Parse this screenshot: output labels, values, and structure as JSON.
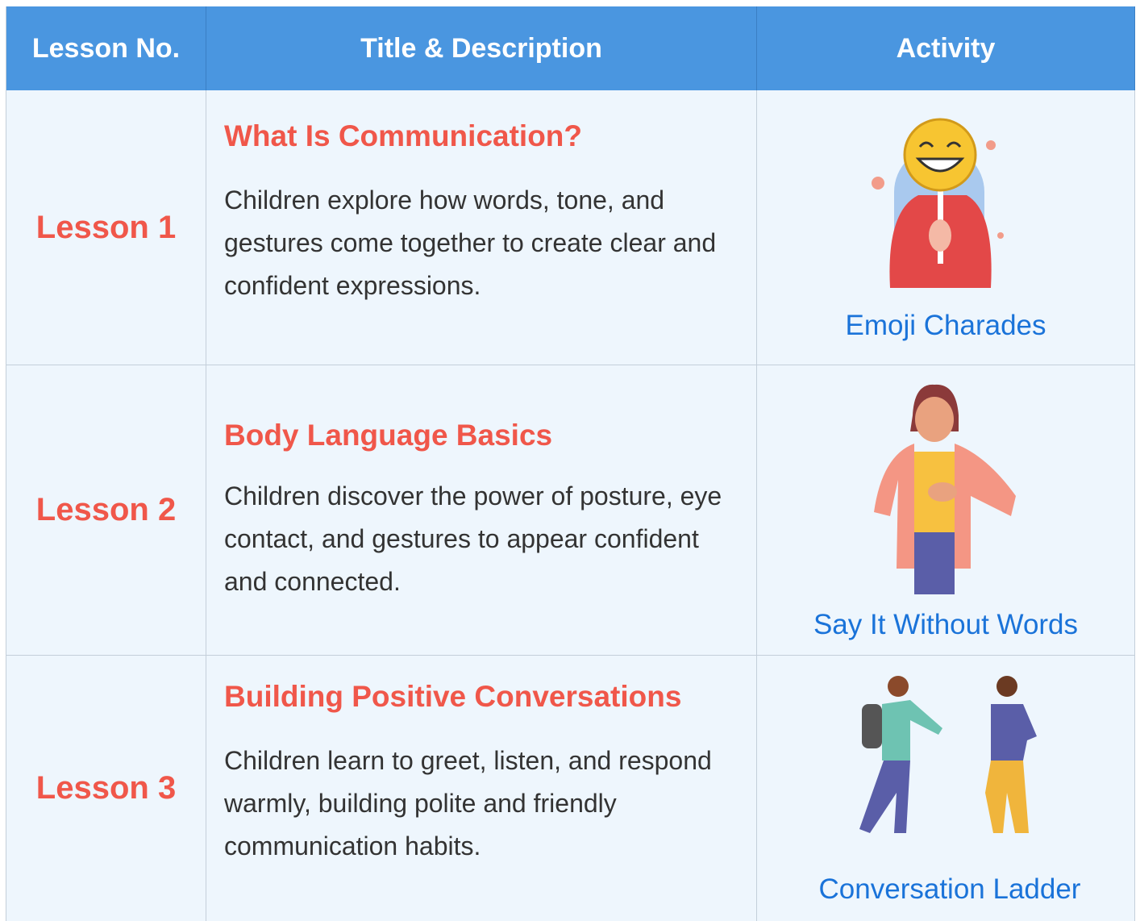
{
  "table": {
    "header": [
      "Lesson No.",
      "Title & Description",
      "Activity"
    ],
    "rows": [
      {
        "lesson": "Lesson 1",
        "title": "What Is Communication?",
        "description": "Children explore how words, tone, and gestures come together to create clear and confident expressions.",
        "activity": "Emoji Charades"
      },
      {
        "lesson": "Lesson 2",
        "title": "Body Language Basics",
        "description": "Children discover the power of posture, eye contact, and gestures to appear confident and connected.",
        "activity": "Say It Without Words"
      },
      {
        "lesson": "Lesson 3",
        "title": "Building Positive Conversations",
        "description": "Children learn to greet, listen, and respond warmly, building polite and friendly communication habits.",
        "activity": "Conversation Ladder"
      }
    ]
  }
}
